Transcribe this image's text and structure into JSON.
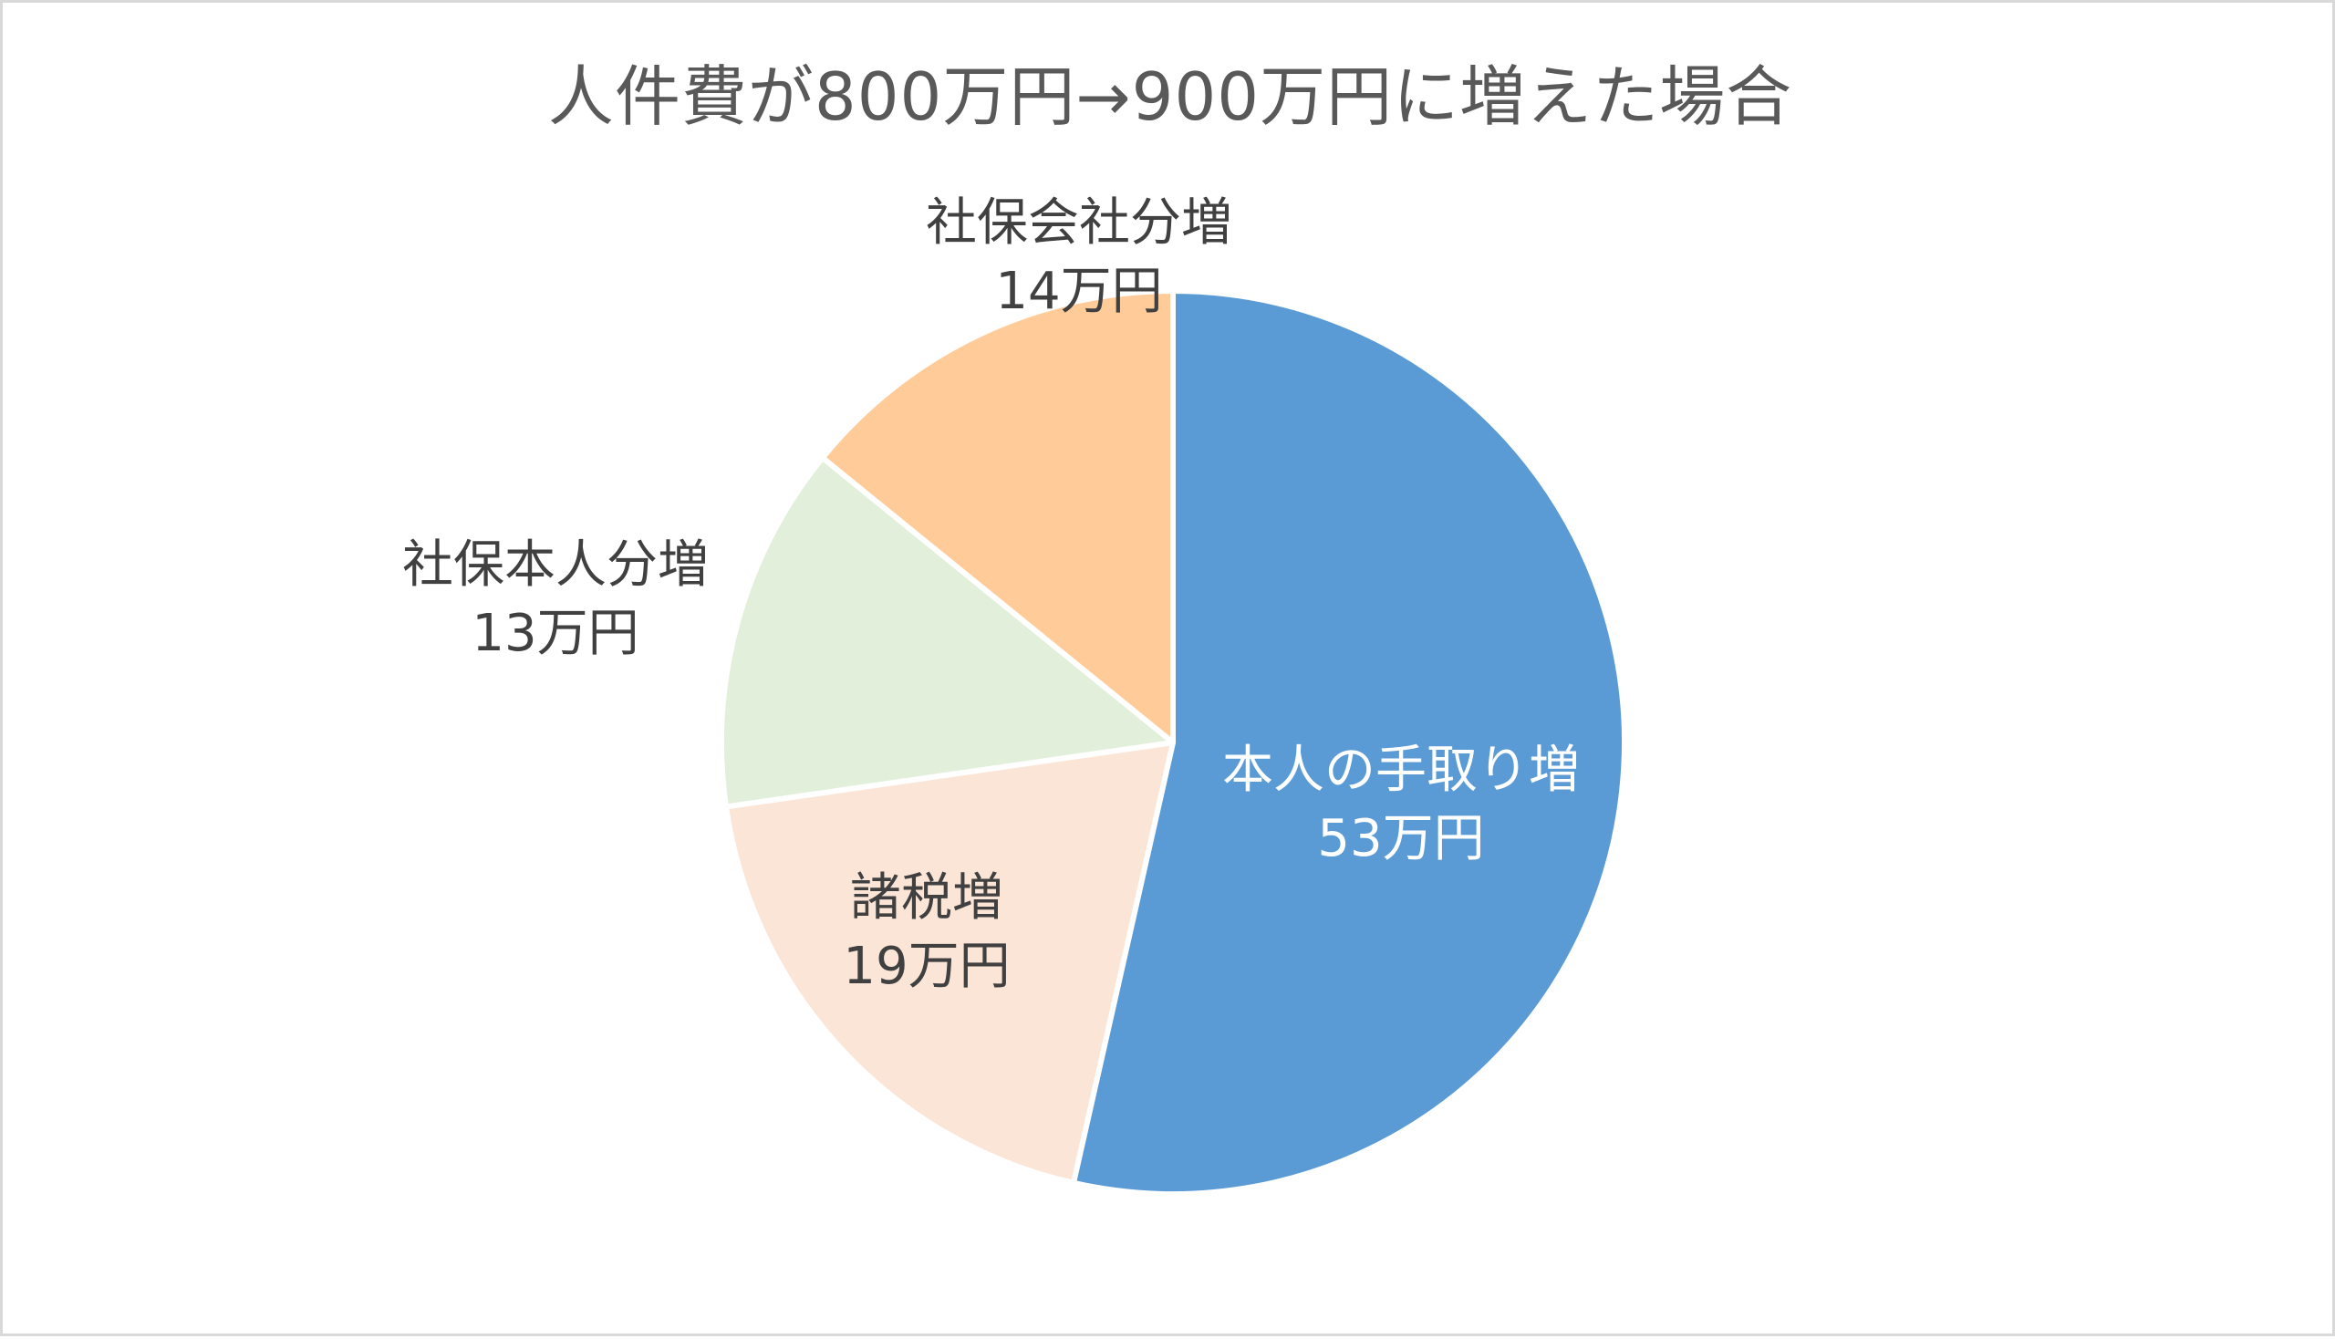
{
  "chart_data": {
    "type": "pie",
    "title": "人件費が800万円→900万円に増えた場合",
    "start_angle_deg": 0,
    "direction": "clockwise",
    "slices": [
      {
        "category": "本人の手取り増",
        "value_label": "53万円",
        "value": 53,
        "color": "#5b9bd5"
      },
      {
        "category": "諸税増",
        "value_label": "19万円",
        "value": 19,
        "color": "#fbe5d6"
      },
      {
        "category": "社保本人分増",
        "value_label": "13万円",
        "value": 13,
        "color": "#e2efda"
      },
      {
        "category": "社保会社分増",
        "value_label": "14万円",
        "value": 14,
        "color": "#ffcc99"
      }
    ],
    "legend": "none",
    "border_color": "#d9d9d9",
    "slice_border_color": "#ffffff"
  }
}
